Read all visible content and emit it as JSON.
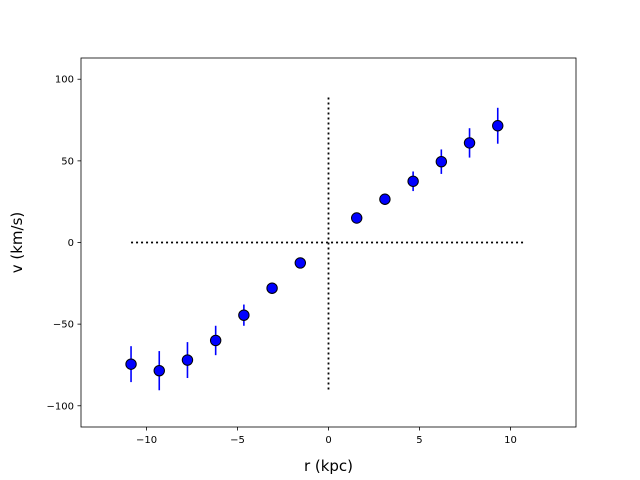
{
  "chart_data": {
    "type": "scatter",
    "title": "",
    "xlabel": "r (kpc)",
    "ylabel": "v (km/s)",
    "xlim": [
      -13.6,
      13.6
    ],
    "ylim": [
      -113,
      113
    ],
    "xticks": [
      -10,
      -5,
      0,
      5,
      10
    ],
    "yticks": [
      -100,
      -50,
      0,
      50,
      100
    ],
    "xtick_labels": [
      "−10",
      "−5",
      "0",
      "5",
      "10"
    ],
    "ytick_labels": [
      "−100",
      "−50",
      "0",
      "50",
      "100"
    ],
    "grid": false,
    "series": [
      {
        "x": [
          -10.85,
          -9.3,
          -7.75,
          -6.2,
          -4.65,
          -3.1,
          -1.55,
          1.55,
          3.1,
          4.65,
          6.2,
          7.75,
          9.3
        ],
        "y": [
          -74.5,
          -78.5,
          -72,
          -60,
          -44.5,
          -28,
          -12.5,
          15,
          26.5,
          37.5,
          49.5,
          61,
          71.5
        ],
        "yerr": [
          11,
          12,
          11,
          9,
          6.5,
          3.5,
          2.5,
          2.5,
          3.5,
          6,
          7.5,
          9,
          11
        ],
        "color": "#0000ff",
        "edgecolor": "#000000"
      }
    ],
    "reference_lines": [
      {
        "orientation": "horizontal",
        "value": 0,
        "from": -10.85,
        "to": 10.85,
        "style": "dotted",
        "color": "#000000"
      },
      {
        "orientation": "vertical",
        "value": 0,
        "from": -90,
        "to": 90,
        "style": "dotted",
        "color": "#000000"
      }
    ]
  }
}
